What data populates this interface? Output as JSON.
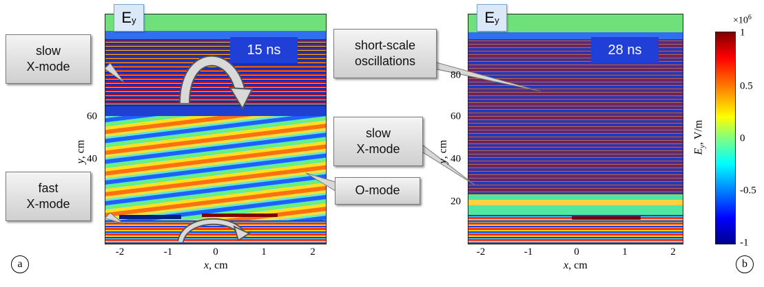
{
  "panel_a": {
    "label": "a",
    "field_tag": "E",
    "field_sub": "y",
    "time": "15 ns",
    "callouts": {
      "slow_xmode": "slow\nX-mode",
      "fast_xmode": "fast\nX-mode",
      "omode": "O-mode"
    }
  },
  "panel_b": {
    "label": "b",
    "field_tag": "E",
    "field_sub": "y",
    "time": "28 ns",
    "callouts": {
      "short_scale": "short-scale\noscillations",
      "slow_xmode": "slow\nX-mode"
    }
  },
  "axes": {
    "x_label_var": "x",
    "x_label_unit": ", cm",
    "y_label_var": "y",
    "y_label_unit": ", cm",
    "x_ticks": [
      "-2",
      "-1",
      "0",
      "1",
      "2"
    ],
    "y_ticks_a": [
      "60",
      "40"
    ],
    "y_ticks_b": [
      "80",
      "60",
      "40",
      "20"
    ]
  },
  "colorbar": {
    "scale_label": "×10",
    "scale_exp": "6",
    "ticks": [
      "1",
      "0.5",
      "0",
      "-0.5",
      "-1"
    ],
    "label_var": "E",
    "label_sub": "y",
    "label_unit": ", V/m",
    "colormap": "jet"
  }
}
